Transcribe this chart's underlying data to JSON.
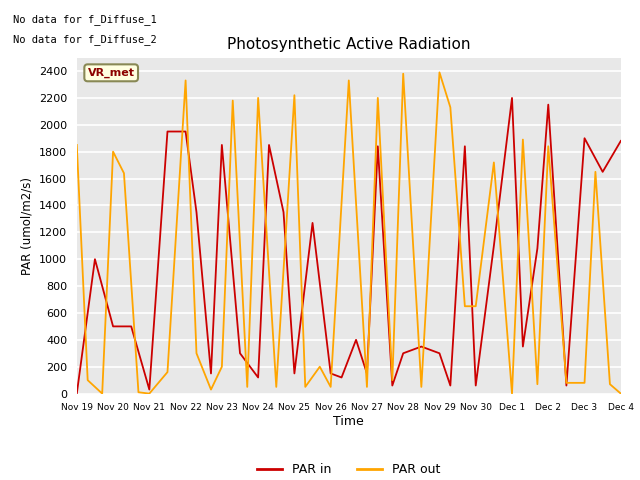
{
  "title": "Photosynthetic Active Radiation",
  "xlabel": "Time",
  "ylabel": "PAR (umol/m2/s)",
  "note_line1": "No data for f_Diffuse_1",
  "note_line2": "No data for f_Diffuse_2",
  "legend_label": "VR_met",
  "ylim": [
    0,
    2500
  ],
  "background_color": "#e8e8e8",
  "grid_color": "white",
  "par_in_color": "#cc0000",
  "par_out_color": "#ffa500",
  "tick_labels": [
    "Nov 19",
    "Nov 20",
    "Nov 21",
    "Nov 22",
    "Nov 23",
    "Nov 24",
    "Nov 25",
    "Nov 26",
    "Nov 27",
    "Nov 28",
    "Nov 29",
    "Nov 30",
    "Dec 1",
    "Dec 2",
    "Dec 3",
    "Dec 4"
  ],
  "par_in_x": [
    0,
    0.5,
    1,
    1.5,
    2,
    2.5,
    3,
    3.3,
    3.7,
    4,
    4.5,
    5,
    5.3,
    5.7,
    6,
    6.5,
    7,
    7.3,
    7.7,
    8,
    8.3,
    8.7,
    9,
    9.5,
    10,
    10.3,
    10.7,
    11,
    11.5,
    12,
    12.3,
    12.7,
    13,
    13.5,
    14,
    14.5,
    15
  ],
  "par_in_y": [
    0,
    1000,
    500,
    500,
    30,
    1950,
    1950,
    1350,
    150,
    1850,
    300,
    120,
    1850,
    1350,
    150,
    1270,
    150,
    120,
    400,
    150,
    1840,
    60,
    300,
    350,
    300,
    60,
    1840,
    60,
    1100,
    2200,
    350,
    1080,
    2150,
    60,
    1900,
    1650,
    1880
  ],
  "par_out_x": [
    0,
    0.3,
    0.7,
    1,
    1.3,
    1.7,
    2,
    2.5,
    3,
    3.3,
    3.7,
    4,
    4.3,
    4.7,
    5,
    5.5,
    6,
    6.3,
    6.7,
    7,
    7.5,
    8,
    8.3,
    8.7,
    9,
    9.5,
    10,
    10.3,
    10.7,
    11,
    11.5,
    12,
    12.3,
    12.7,
    13,
    13.5,
    14,
    14.3,
    14.7,
    15
  ],
  "par_out_y": [
    1850,
    100,
    0,
    1800,
    1640,
    10,
    0,
    160,
    2330,
    300,
    30,
    200,
    2180,
    50,
    2200,
    50,
    2220,
    50,
    200,
    50,
    2330,
    50,
    2200,
    100,
    2380,
    50,
    2390,
    2130,
    650,
    650,
    1720,
    0,
    1890,
    70,
    1840,
    80,
    80,
    1650,
    70,
    0
  ]
}
